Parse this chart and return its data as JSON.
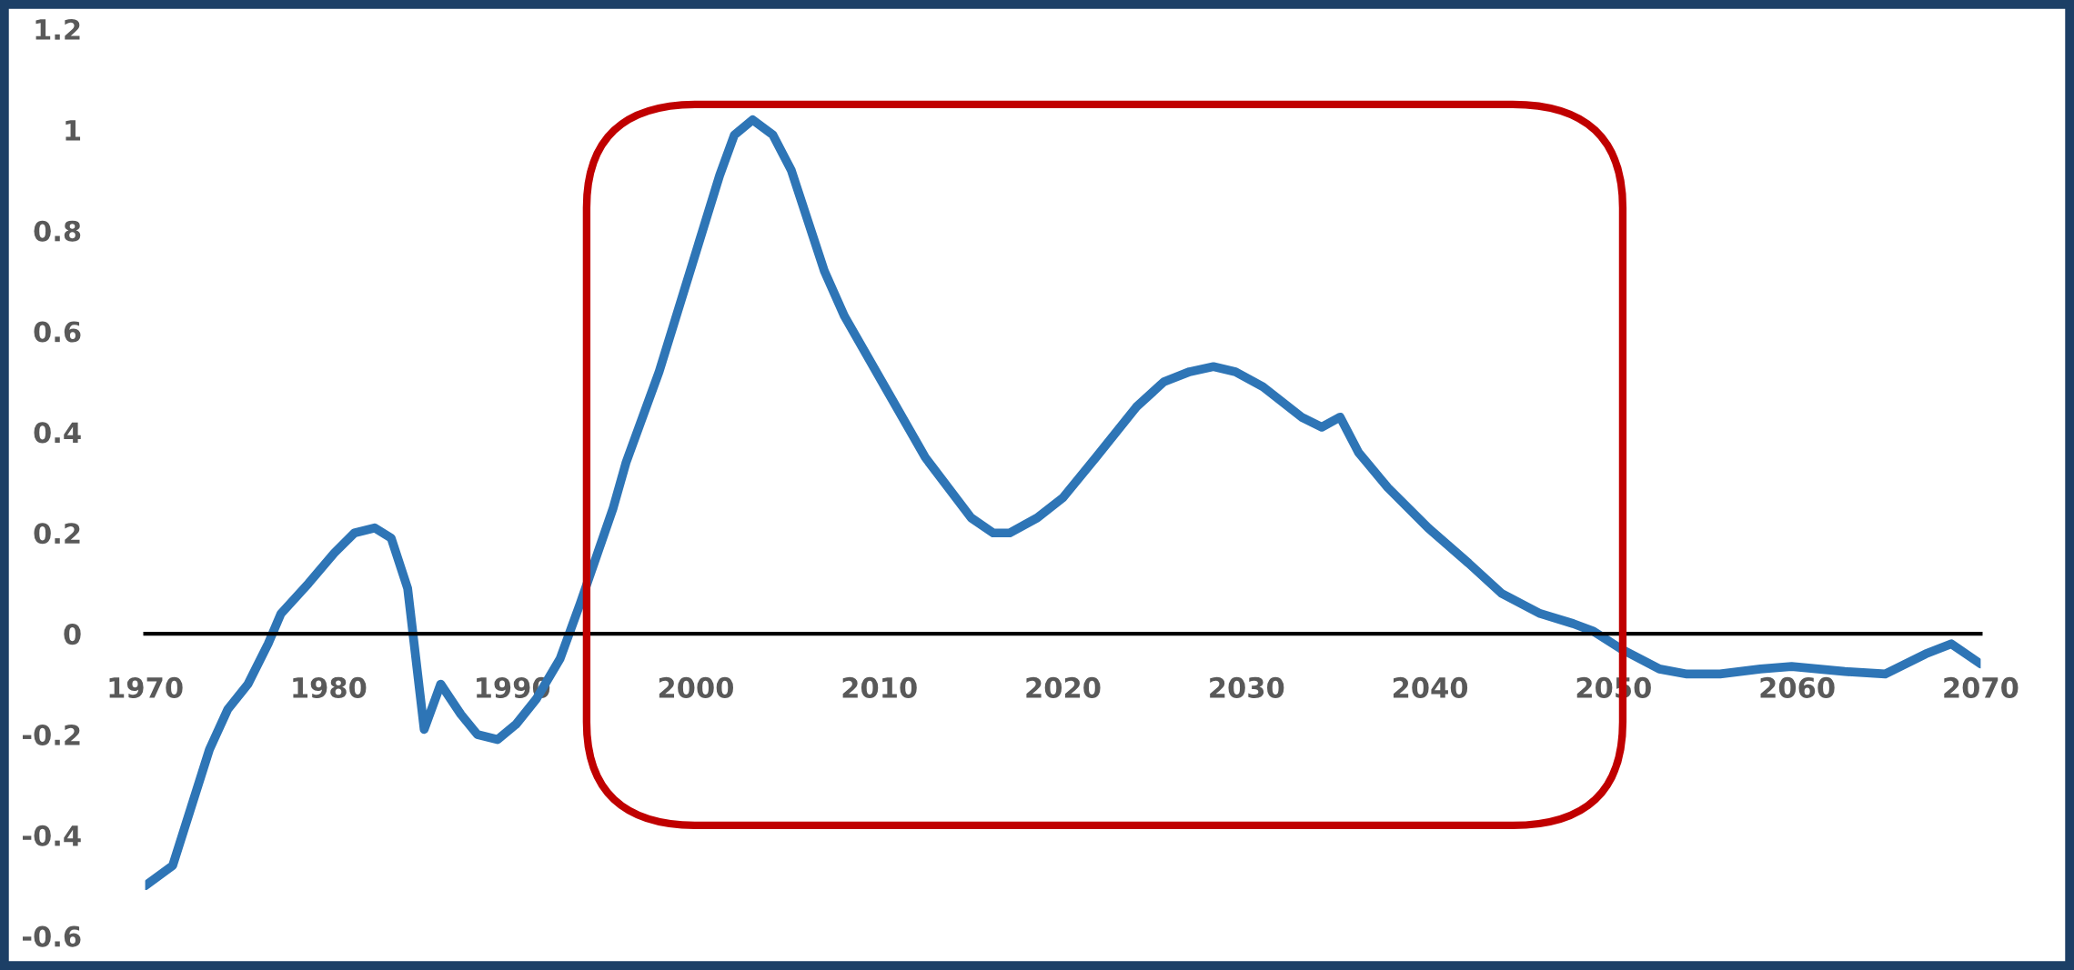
{
  "chart_data": {
    "type": "line",
    "x": [
      1970,
      1971.5,
      1973.5,
      1974.5,
      1975.6,
      1976.7,
      1977.4,
      1978.9,
      1980.3,
      1981.4,
      1982.5,
      1983.4,
      1984.3,
      1985.2,
      1986.1,
      1987.2,
      1988.1,
      1989.2,
      1990.2,
      1991.3,
      1992.6,
      1993.7,
      1995.5,
      1996.2,
      1998,
      2000.2,
      2001.3,
      2002.1,
      2003.1,
      2004.2,
      2005.2,
      2007,
      2008.1,
      2010.3,
      2012.5,
      2015,
      2016.2,
      2017.1,
      2018.6,
      2020,
      2021.8,
      2024,
      2025.5,
      2026.9,
      2028.2,
      2029.4,
      2030.9,
      2033,
      2034.1,
      2035.1,
      2036.1,
      2037.7,
      2039.9,
      2042.1,
      2043.9,
      2046,
      2047.8,
      2048.9,
      2050.4,
      2052.5,
      2054,
      2055.8,
      2058,
      2059.7,
      2062.6,
      2064.8,
      2067,
      2068.4,
      2070
    ],
    "series": [
      {
        "color": "#2e75b6",
        "values": [
          -0.5,
          -0.46,
          -0.23,
          -0.15,
          -0.1,
          -0.02,
          0.04,
          0.1,
          0.16,
          0.2,
          0.21,
          0.19,
          0.09,
          -0.19,
          -0.1,
          -0.16,
          -0.2,
          -0.21,
          -0.18,
          -0.13,
          -0.05,
          0.06,
          0.25,
          0.34,
          0.52,
          0.78,
          0.91,
          0.99,
          1.02,
          0.99,
          0.92,
          0.72,
          0.63,
          0.49,
          0.35,
          0.23,
          0.2,
          0.2,
          0.23,
          0.27,
          0.35,
          0.45,
          0.5,
          0.52,
          0.53,
          0.52,
          0.49,
          0.43,
          0.41,
          0.43,
          0.36,
          0.29,
          0.21,
          0.14,
          0.08,
          0.04,
          0.02,
          0.005,
          -0.03,
          -0.07,
          -0.08,
          -0.08,
          -0.07,
          -0.065,
          -0.075,
          -0.08,
          -0.04,
          -0.02,
          -0.06
        ]
      }
    ],
    "xlim": [
      1970,
      2070
    ],
    "xticks": [
      1970,
      1980,
      1990,
      2000,
      2010,
      2020,
      2030,
      2040,
      2050,
      2060,
      2070
    ],
    "ylim": [
      -0.6,
      1.2
    ],
    "yticks": [
      -0.6,
      -0.4,
      -0.2,
      0,
      0.2,
      0.4,
      0.6,
      0.8,
      1,
      1.2
    ],
    "grid": false,
    "legend": false,
    "marker": "none",
    "line_style": "solid"
  }
}
